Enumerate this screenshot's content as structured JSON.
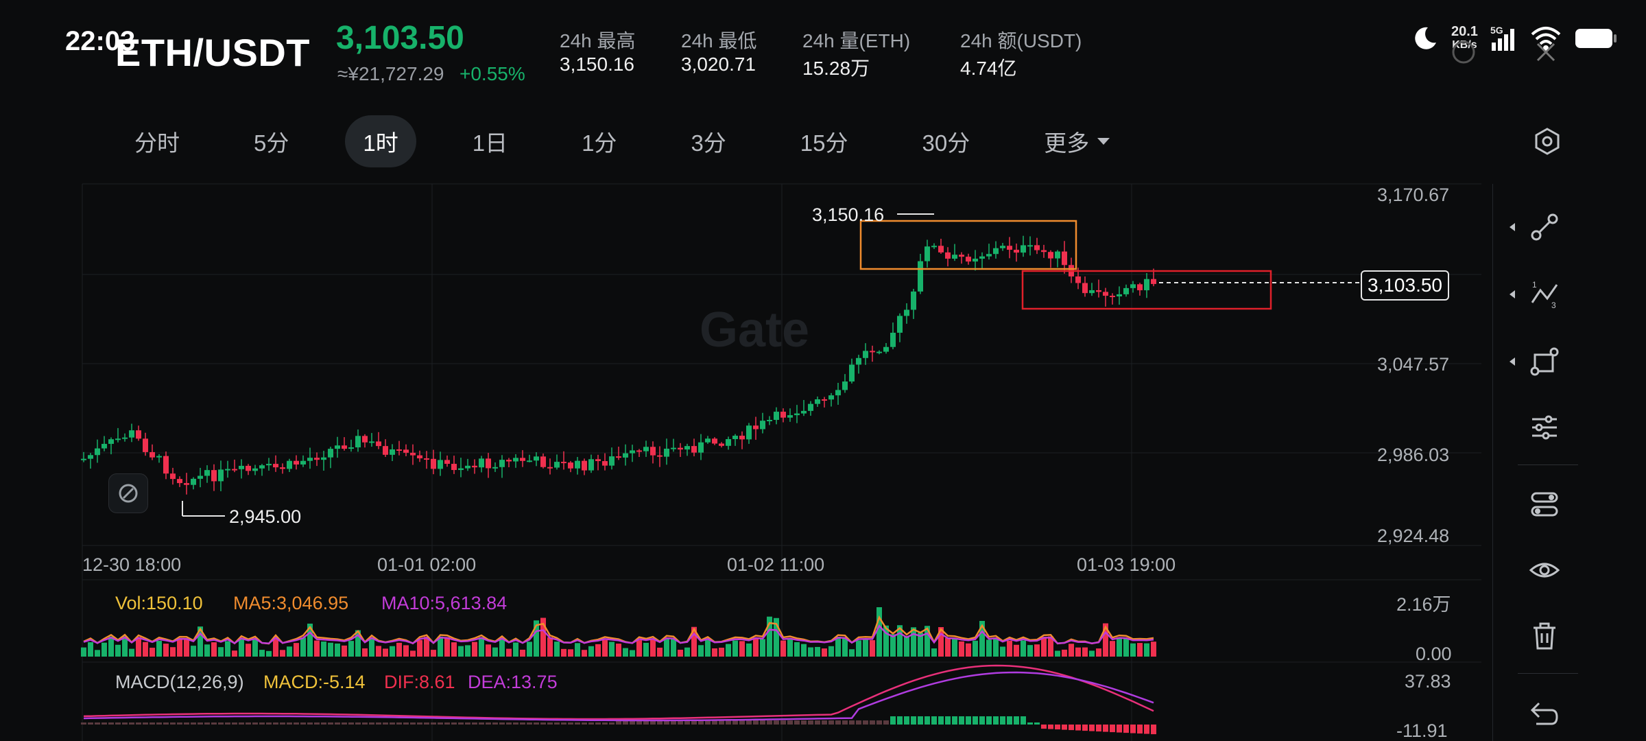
{
  "status_bar": {
    "time": "22:03",
    "net_speed": "20.1",
    "net_unit": "KB/s",
    "network": "5G"
  },
  "header": {
    "pair": "ETH/USDT",
    "price": "3,103.50",
    "cny_price": "≈¥21,727.29",
    "change": "+0.55%",
    "stats": [
      {
        "label": "24h  最高",
        "value": "3,150.16"
      },
      {
        "label": "24h  最低",
        "value": "3,020.71"
      },
      {
        "label": "24h  量(ETH)",
        "value": "15.28万"
      },
      {
        "label": "24h  额(USDT)",
        "value": "4.74亿"
      }
    ]
  },
  "tabs": [
    "分时",
    "5分",
    "1时",
    "1日",
    "1分",
    "3分",
    "15分",
    "30分",
    "更多"
  ],
  "active_tab": "1时",
  "chart": {
    "y_ticks": [
      "3,170.67",
      "3,047.57",
      "2,986.03",
      "2,924.48"
    ],
    "x_ticks": [
      "12-30 18:00",
      "01-01 02:00",
      "01-02 11:00",
      "01-03 19:00"
    ],
    "high_label": "3,150.16",
    "low_label": "2,945.00",
    "current_price": "3,103.50",
    "watermark": "Gate",
    "colors": {
      "up": "#17b26a",
      "down": "#f0304f",
      "orange_box": "#f08c2e",
      "red_box": "#e0202a"
    }
  },
  "volume": {
    "vol": "Vol:150.10",
    "ma5": "MA5:3,046.95",
    "ma10": "MA10:5,613.84",
    "y_top": "2.16万",
    "y_bottom": "0.00"
  },
  "macd": {
    "label": "MACD(12,26,9)",
    "macd": "MACD:-5.14",
    "dif": "DIF:8.61",
    "dea": "DEA:13.75",
    "y_top": "37.83",
    "y_bottom": "-11.91"
  },
  "toolbar": [
    "settings-hex-icon",
    "line-draw-icon",
    "fib-tool-icon",
    "shape-tool-icon",
    "adjust-icon",
    "indicator-icon",
    "visibility-icon",
    "trash-icon",
    "undo-icon"
  ]
}
